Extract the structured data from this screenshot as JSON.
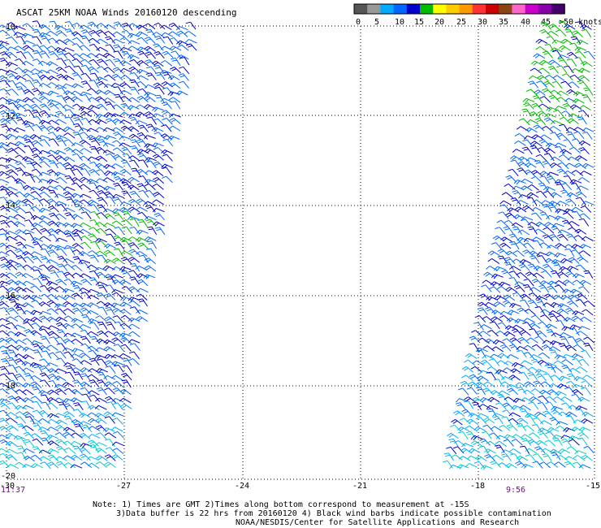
{
  "title": "ASCAT 25KM NOAA Winds 20160120 descending",
  "legend": {
    "colors": [
      "#555555",
      "#999999",
      "#00aaff",
      "#0066ff",
      "#0000cc",
      "#00bb00",
      "#ffff00",
      "#ffcc00",
      "#ff9900",
      "#ff3333",
      "#cc0000",
      "#8b4513",
      "#ff66cc",
      "#cc00cc",
      "#8800aa",
      "#44006a"
    ],
    "labels": [
      "0",
      "5",
      "10",
      "15",
      "20",
      "25",
      "30",
      "35",
      "40",
      "45",
      ">50 knots"
    ]
  },
  "axes": {
    "lat_ticks": [
      "-10",
      "-12",
      "-14",
      "-16",
      "-18",
      "-20"
    ],
    "lon_ticks": [
      "-30",
      "-27",
      "-24",
      "-21",
      "-18",
      "-15"
    ]
  },
  "times": {
    "left": "11:37",
    "right": "9:56"
  },
  "notes": [
    "Note: 1) Times are GMT 2)Times along bottom correspond to measurement at -15S",
    "3)Data buffer is 22 hrs from 20160120 4) Black wind barbs indicate possible contamination",
    "NOAA/NESDIS/Center for Satellite Applications and Research"
  ],
  "swaths": [
    {
      "name": "west swath",
      "dominant": "blue/navy with green and cyan patches"
    },
    {
      "name": "east swath",
      "dominant": "blue with green at north, cyan at south"
    }
  ]
}
